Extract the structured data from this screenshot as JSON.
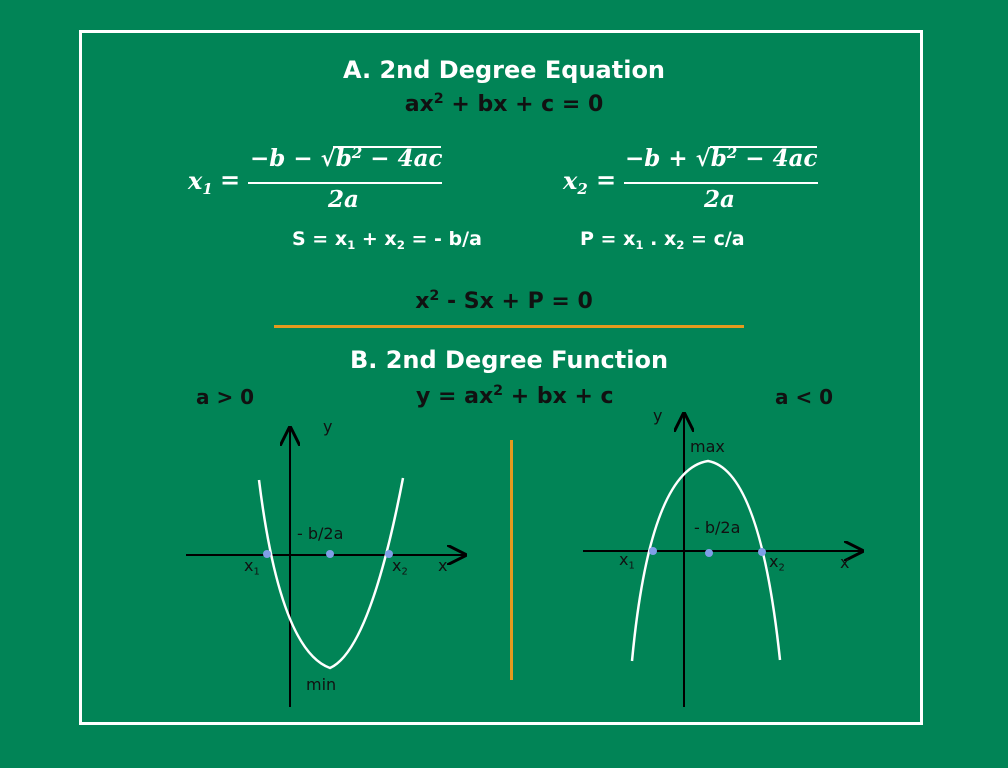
{
  "section_a": {
    "title": "A.  2nd Degree Equation",
    "equation_lhs": "ax",
    "equation_exp": "2",
    "equation_rhs": " + bx + c = 0"
  },
  "roots": {
    "x1_var": "x",
    "x1_sub": "1",
    "x1_eq": "=",
    "x1_num_prefix": "−b −",
    "x1_radical": "√",
    "x1_rad_base": "b",
    "x1_rad_exp": "2",
    "x1_rad_rest": " − 4ac",
    "x1_den": "2a",
    "x2_var": "x",
    "x2_sub": "2",
    "x2_eq": "=",
    "x2_num_prefix": "−b +",
    "x2_radical": "√",
    "x2_rad_base": "b",
    "x2_rad_exp": "2",
    "x2_rad_rest": " − 4ac",
    "x2_den": "2a"
  },
  "sum_product": {
    "sum_text_a": "S = x",
    "sum_sub1": "1",
    "sum_text_b": " + x",
    "sum_sub2": "2",
    "sum_text_c": " = - b/a",
    "prod_text_a": "P = x",
    "prod_sub1": "1",
    "prod_text_b": " . x",
    "prod_sub2": "2",
    "prod_text_c": " = c/a"
  },
  "sum_product_equation": {
    "lhs": "x",
    "exp": "2",
    "rhs": " - Sx + P = 0"
  },
  "section_b": {
    "title": "B.  2nd Degree Function",
    "function_lhs": "y = ax",
    "function_exp": "2",
    "function_rhs": " + bx + c",
    "case_left": "a > 0",
    "case_right": "a < 0"
  },
  "graph_left": {
    "y_label": "y",
    "x_label": "x",
    "vertex_label": "- b/2a",
    "min_label": "min",
    "root1_var": "x",
    "root1_sub": "1",
    "root2_var": "x",
    "root2_sub": "2"
  },
  "graph_right": {
    "y_label": "y",
    "x_label": "x",
    "vertex_label": "- b/2a",
    "max_label": "max",
    "root1_var": "x",
    "root1_sub": "1",
    "root2_var": "x",
    "root2_sub": "2"
  },
  "colors": {
    "background": "#018456",
    "border": "#ffffff",
    "divider": "#e39a1e",
    "text_dark": "#111111",
    "point": "#7f9fe8"
  }
}
